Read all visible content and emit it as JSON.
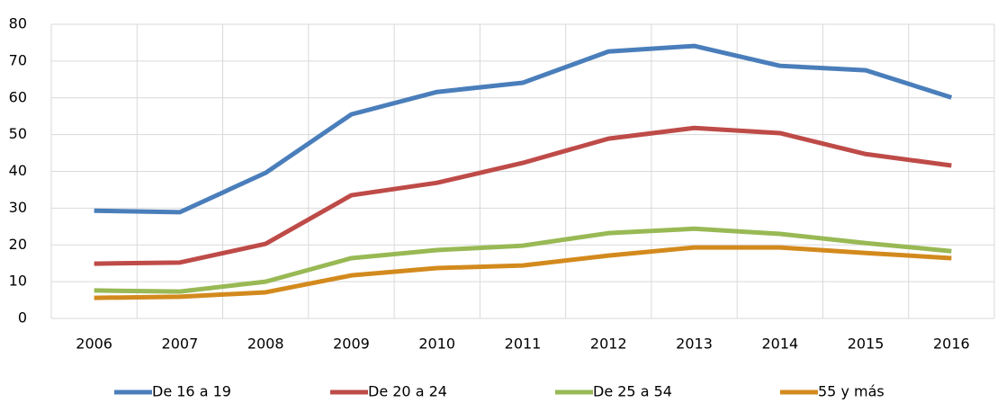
{
  "chart_data": {
    "type": "line",
    "categories": [
      "2006",
      "2007",
      "2008",
      "2009",
      "2010",
      "2011",
      "2012",
      "2013",
      "2014",
      "2015",
      "2016"
    ],
    "series": [
      {
        "name": "De 16 a 19",
        "color": "#4a7ebb",
        "values": [
          29.3,
          28.9,
          39.6,
          55.5,
          61.6,
          64.1,
          72.6,
          74.1,
          68.7,
          67.5,
          60.1
        ]
      },
      {
        "name": "De 20 a 24",
        "color": "#be4b48",
        "values": [
          14.9,
          15.2,
          20.3,
          33.5,
          36.9,
          42.3,
          48.9,
          51.8,
          50.4,
          44.7,
          41.6
        ]
      },
      {
        "name": "De 25 a 54",
        "color": "#98b954",
        "values": [
          7.6,
          7.3,
          10.0,
          16.4,
          18.6,
          19.8,
          23.2,
          24.4,
          23.0,
          20.5,
          18.3
        ]
      },
      {
        "name": "55 y más",
        "color": "#d38a1d",
        "values": [
          5.6,
          5.9,
          7.1,
          11.7,
          13.7,
          14.4,
          17.1,
          19.3,
          19.3,
          17.8,
          16.4
        ]
      }
    ],
    "ylim": [
      0,
      80
    ],
    "yticks": [
      0,
      10,
      20,
      30,
      40,
      50,
      60,
      70,
      80
    ],
    "grid": true,
    "legend": "bottom"
  }
}
